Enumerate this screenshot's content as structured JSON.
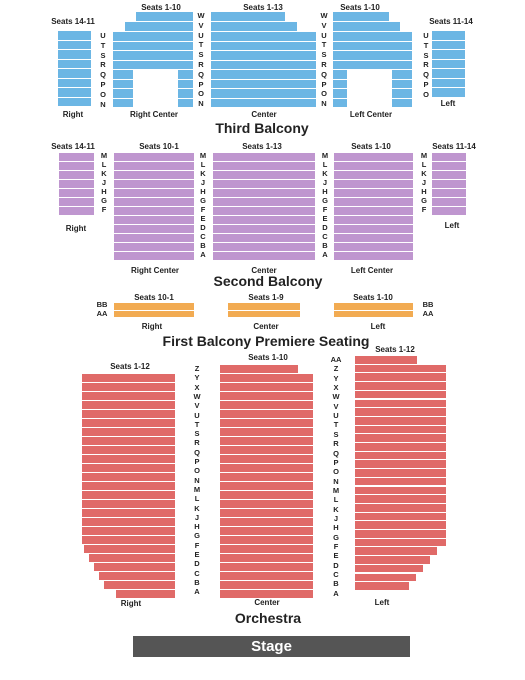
{
  "colors": {
    "third_balcony": "#6cb6e4",
    "second_balcony": "#bf96cf",
    "first_balcony": "#f2ab52",
    "orchestra": "#e06a68",
    "stage": "#555555",
    "row_gap": "#ffffff"
  },
  "third_balcony": {
    "title": "Third Balcony",
    "seats_right": "Seats 14-11",
    "seats_right_center": "Seats 1-10",
    "seats_center": "Seats 1-13",
    "seats_left_center": "Seats 1-10",
    "seats_left": "Seats 11-14",
    "label_right": "Right",
    "label_right_center": "Right Center",
    "label_center": "Center",
    "label_left_center": "Left Center",
    "label_left": "Left",
    "rows_a": [
      "U",
      "T",
      "S",
      "R",
      "Q",
      "P",
      "O",
      "N"
    ],
    "rows_b": [
      "W",
      "V",
      "U",
      "T",
      "S",
      "R",
      "Q",
      "P",
      "O",
      "N"
    ],
    "rows_c": [
      "W",
      "V",
      "U",
      "T",
      "S",
      "R",
      "Q",
      "P",
      "O",
      "N"
    ],
    "rows_d": [
      "U",
      "T",
      "S",
      "R",
      "Q",
      "P",
      "O"
    ]
  },
  "second_balcony": {
    "title": "Second Balcony",
    "seats_right": "Seats 14-11",
    "seats_right_center": "Seats 10-1",
    "seats_center": "Seats 1-13",
    "seats_left_center": "Seats 1-10",
    "seats_left": "Seats 11-14",
    "label_right": "Right",
    "label_right_center": "Right Center",
    "label_center": "Center",
    "label_left_center": "Left Center",
    "label_left": "Left",
    "rows_a": [
      "M",
      "L",
      "K",
      "J",
      "H",
      "G",
      "F"
    ],
    "rows_b": [
      "M",
      "L",
      "K",
      "J",
      "H",
      "G",
      "F",
      "E",
      "D",
      "C",
      "B",
      "A"
    ],
    "rows_c": [
      "M",
      "L",
      "K",
      "J",
      "H",
      "G",
      "F",
      "E",
      "D",
      "C",
      "B",
      "A"
    ],
    "rows_d": [
      "M",
      "L",
      "K",
      "J",
      "H",
      "G",
      "F"
    ]
  },
  "first_balcony": {
    "title": "First Balcony Premiere Seating",
    "seats_right": "Seats 10-1",
    "seats_center": "Seats 1-9",
    "seats_left": "Seats 1-10",
    "label_right": "Right",
    "label_center": "Center",
    "label_left": "Left",
    "rows": [
      "BB",
      "AA"
    ]
  },
  "orchestra": {
    "title": "Orchestra",
    "seats_right": "Seats 1-12",
    "seats_center": "Seats 1-10",
    "seats_left": "Seats 1-12",
    "label_right": "Right",
    "label_center": "Center",
    "label_left": "Left",
    "rows_left_aisle": [
      "Z",
      "Y",
      "X",
      "W",
      "V",
      "U",
      "T",
      "S",
      "R",
      "Q",
      "P",
      "O",
      "N",
      "M",
      "L",
      "K",
      "J",
      "H",
      "G",
      "F",
      "E",
      "D",
      "C",
      "B",
      "A"
    ],
    "rows_right_aisle": [
      "AA",
      "Z",
      "Y",
      "X",
      "W",
      "V",
      "U",
      "T",
      "S",
      "R",
      "Q",
      "P",
      "O",
      "N",
      "M",
      "L",
      "K",
      "J",
      "H",
      "G",
      "F",
      "E",
      "D",
      "C",
      "B",
      "A"
    ]
  },
  "stage": {
    "label": "Stage"
  }
}
